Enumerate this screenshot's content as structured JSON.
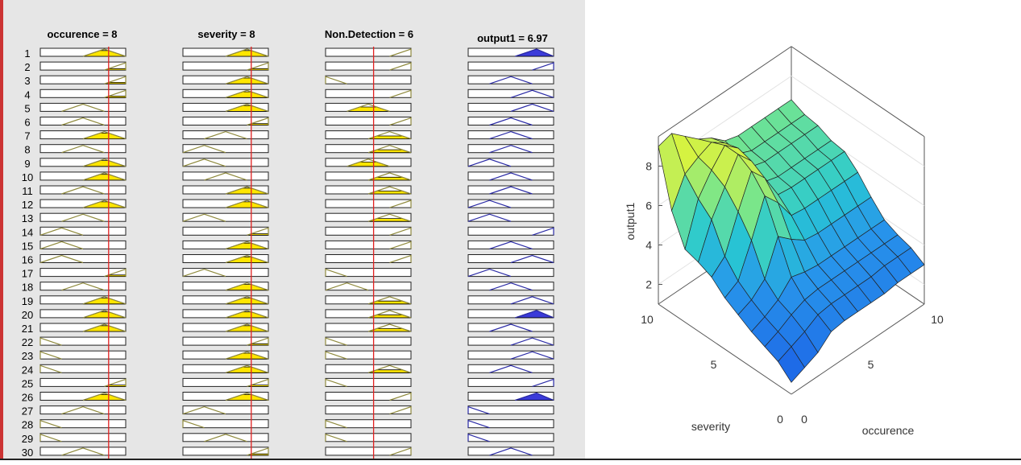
{
  "rule_viewer": {
    "headers": [
      {
        "label": "occurence = 8",
        "type": "input",
        "value": 8
      },
      {
        "label": "severity = 8",
        "type": "input",
        "value": 8
      },
      {
        "label": "Non.Detection = 6",
        "type": "input",
        "value": 6
      },
      {
        "label": "output1 = 6.97",
        "type": "output"
      }
    ],
    "rule_numbers": [
      "1",
      "2",
      "3",
      "4",
      "5",
      "6",
      "7",
      "8",
      "9",
      "10",
      "11",
      "12",
      "13",
      "14",
      "15",
      "16",
      "17",
      "18",
      "19",
      "20",
      "21",
      "22",
      "23",
      "24",
      "25",
      "26",
      "27",
      "28",
      "29",
      "30"
    ],
    "rules": [
      [
        4,
        4,
        5,
        6
      ],
      [
        5,
        5,
        5,
        5
      ],
      [
        5,
        4,
        1,
        3
      ],
      [
        5,
        4,
        5,
        4
      ],
      [
        3,
        4,
        3,
        4
      ],
      [
        3,
        5,
        5,
        3
      ],
      [
        4,
        3,
        4,
        3
      ],
      [
        3,
        2,
        4,
        3
      ],
      [
        4,
        2,
        3,
        2
      ],
      [
        4,
        3,
        4,
        3
      ],
      [
        3,
        4,
        4,
        3
      ],
      [
        4,
        4,
        5,
        2
      ],
      [
        3,
        2,
        4,
        2
      ],
      [
        2,
        5,
        5,
        5
      ],
      [
        2,
        4,
        5,
        3
      ],
      [
        2,
        4,
        5,
        4
      ],
      [
        5,
        2,
        1,
        2
      ],
      [
        3,
        4,
        2,
        3
      ],
      [
        4,
        4,
        4,
        4
      ],
      [
        4,
        4,
        4,
        6
      ],
      [
        4,
        4,
        4,
        3
      ],
      [
        1,
        5,
        1,
        4
      ],
      [
        1,
        4,
        1,
        4
      ],
      [
        1,
        4,
        4,
        3
      ],
      [
        5,
        5,
        1,
        5
      ],
      [
        4,
        4,
        5,
        6
      ],
      [
        3,
        2,
        5,
        1
      ],
      [
        1,
        1,
        1,
        1
      ],
      [
        1,
        3,
        1,
        1
      ],
      [
        3,
        5,
        5,
        3
      ]
    ]
  },
  "chart_data": {
    "type": "surface",
    "xlabel": "severity",
    "ylabel": "occurence",
    "zlabel": "output1",
    "x_ticks": [
      "0",
      "5",
      "10"
    ],
    "y_ticks": [
      "0",
      "5",
      "10"
    ],
    "z_ticks": [
      "2",
      "4",
      "6",
      "8"
    ],
    "x_range": [
      0,
      10
    ],
    "y_range": [
      0,
      10
    ],
    "z_range": [
      1,
      9.5
    ],
    "grid_x": [
      0,
      1,
      2,
      3,
      4,
      5,
      6,
      7,
      8,
      9,
      10
    ],
    "grid_y": [
      0,
      1,
      2,
      3,
      4,
      5,
      6,
      7,
      8,
      9,
      10
    ],
    "z": [
      [
        1.6,
        1.9,
        2.2,
        2.8,
        2.9,
        2.9,
        2.9,
        2.9,
        3.0,
        3.0,
        3.0
      ],
      [
        2.2,
        2.5,
        2.8,
        3.2,
        3.3,
        3.3,
        3.3,
        3.3,
        3.4,
        3.4,
        3.4
      ],
      [
        2.5,
        2.8,
        3.2,
        3.5,
        3.6,
        3.6,
        3.6,
        3.6,
        3.6,
        3.6,
        3.6
      ],
      [
        2.8,
        3.1,
        3.5,
        4.2,
        4.0,
        3.9,
        3.9,
        3.9,
        3.9,
        3.9,
        3.9
      ],
      [
        3.2,
        3.5,
        4.1,
        5.8,
        5.2,
        4.7,
        4.6,
        4.6,
        4.6,
        4.6,
        4.6
      ],
      [
        3.6,
        4.0,
        5.6,
        7.4,
        6.6,
        5.5,
        5.4,
        5.4,
        5.4,
        5.4,
        5.4
      ],
      [
        4.2,
        4.8,
        6.6,
        8.2,
        7.4,
        6.1,
        6.0,
        6.0,
        6.0,
        6.0,
        6.0
      ],
      [
        4.5,
        6.2,
        7.4,
        8.6,
        7.8,
        6.3,
        6.1,
        6.1,
        6.1,
        6.1,
        6.1
      ],
      [
        4.7,
        6.8,
        7.8,
        8.6,
        8.0,
        6.6,
        6.4,
        6.4,
        6.4,
        6.4,
        6.4
      ],
      [
        6.2,
        7.6,
        8.0,
        8.3,
        7.8,
        6.8,
        6.5,
        6.5,
        6.5,
        6.5,
        6.5
      ],
      [
        9.0,
        9.2,
        8.6,
        8.0,
        7.6,
        7.0,
        6.8,
        6.8,
        6.8,
        6.8,
        6.8
      ]
    ]
  },
  "colors": {
    "input_fill": "#ffe600",
    "input_line": "#8f8a3c",
    "output_fill": "#3b3bd9",
    "output_line": "#2a2aa6",
    "red_line": "#e02020",
    "box_border": "#222222"
  }
}
